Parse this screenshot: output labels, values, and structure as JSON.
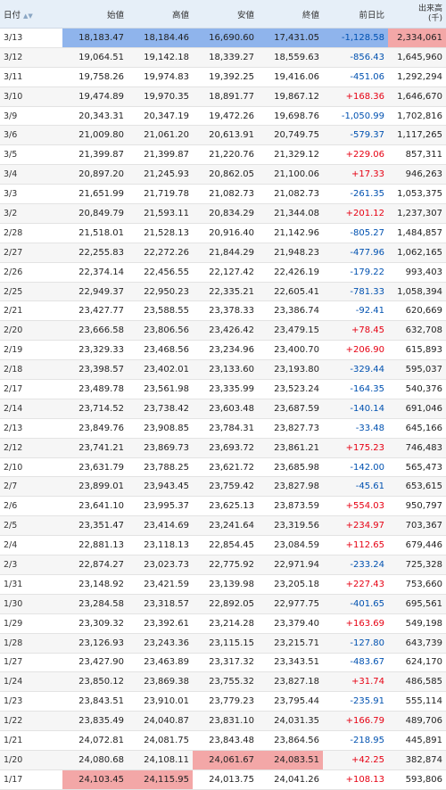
{
  "header": {
    "date_label": "日付",
    "sort_icon": "▲▼",
    "open_label": "始値",
    "high_label": "高値",
    "low_label": "安値",
    "close_label": "終値",
    "change_label": "前日比",
    "volume_label": "出来高",
    "volume_unit": "(千)"
  },
  "colors": {
    "highlight_blue": "#8fb4ec",
    "highlight_red": "#f3a7a7",
    "positive": "#e60012",
    "negative": "#0051b0"
  },
  "rows": [
    {
      "date": "3/13",
      "open": "18,183.47",
      "high": "18,184.46",
      "low": "16,690.60",
      "close": "17,431.05",
      "change": "-1,128.58",
      "volume": "2,334,061",
      "hl": {
        "open": "blue",
        "high": "blue",
        "low": "blue",
        "close": "blue",
        "change": "blue",
        "volume": "red"
      }
    },
    {
      "date": "3/12",
      "open": "19,064.51",
      "high": "19,142.18",
      "low": "18,339.27",
      "close": "18,559.63",
      "change": "-856.43",
      "volume": "1,645,960"
    },
    {
      "date": "3/11",
      "open": "19,758.26",
      "high": "19,974.83",
      "low": "19,392.25",
      "close": "19,416.06",
      "change": "-451.06",
      "volume": "1,292,294"
    },
    {
      "date": "3/10",
      "open": "19,474.89",
      "high": "19,970.35",
      "low": "18,891.77",
      "close": "19,867.12",
      "change": "+168.36",
      "volume": "1,646,670"
    },
    {
      "date": "3/9",
      "open": "20,343.31",
      "high": "20,347.19",
      "low": "19,472.26",
      "close": "19,698.76",
      "change": "-1,050.99",
      "volume": "1,702,816"
    },
    {
      "date": "3/6",
      "open": "21,009.80",
      "high": "21,061.20",
      "low": "20,613.91",
      "close": "20,749.75",
      "change": "-579.37",
      "volume": "1,117,265"
    },
    {
      "date": "3/5",
      "open": "21,399.87",
      "high": "21,399.87",
      "low": "21,220.76",
      "close": "21,329.12",
      "change": "+229.06",
      "volume": "857,311"
    },
    {
      "date": "3/4",
      "open": "20,897.20",
      "high": "21,245.93",
      "low": "20,862.05",
      "close": "21,100.06",
      "change": "+17.33",
      "volume": "946,263"
    },
    {
      "date": "3/3",
      "open": "21,651.99",
      "high": "21,719.78",
      "low": "21,082.73",
      "close": "21,082.73",
      "change": "-261.35",
      "volume": "1,053,375"
    },
    {
      "date": "3/2",
      "open": "20,849.79",
      "high": "21,593.11",
      "low": "20,834.29",
      "close": "21,344.08",
      "change": "+201.12",
      "volume": "1,237,307"
    },
    {
      "date": "2/28",
      "open": "21,518.01",
      "high": "21,528.13",
      "low": "20,916.40",
      "close": "21,142.96",
      "change": "-805.27",
      "volume": "1,484,857"
    },
    {
      "date": "2/27",
      "open": "22,255.83",
      "high": "22,272.26",
      "low": "21,844.29",
      "close": "21,948.23",
      "change": "-477.96",
      "volume": "1,062,165"
    },
    {
      "date": "2/26",
      "open": "22,374.14",
      "high": "22,456.55",
      "low": "22,127.42",
      "close": "22,426.19",
      "change": "-179.22",
      "volume": "993,403"
    },
    {
      "date": "2/25",
      "open": "22,949.37",
      "high": "22,950.23",
      "low": "22,335.21",
      "close": "22,605.41",
      "change": "-781.33",
      "volume": "1,058,394"
    },
    {
      "date": "2/21",
      "open": "23,427.77",
      "high": "23,588.55",
      "low": "23,378.33",
      "close": "23,386.74",
      "change": "-92.41",
      "volume": "620,669"
    },
    {
      "date": "2/20",
      "open": "23,666.58",
      "high": "23,806.56",
      "low": "23,426.42",
      "close": "23,479.15",
      "change": "+78.45",
      "volume": "632,708"
    },
    {
      "date": "2/19",
      "open": "23,329.33",
      "high": "23,468.56",
      "low": "23,234.96",
      "close": "23,400.70",
      "change": "+206.90",
      "volume": "615,893"
    },
    {
      "date": "2/18",
      "open": "23,398.57",
      "high": "23,402.01",
      "low": "23,133.60",
      "close": "23,193.80",
      "change": "-329.44",
      "volume": "595,037"
    },
    {
      "date": "2/17",
      "open": "23,489.78",
      "high": "23,561.98",
      "low": "23,335.99",
      "close": "23,523.24",
      "change": "-164.35",
      "volume": "540,376"
    },
    {
      "date": "2/14",
      "open": "23,714.52",
      "high": "23,738.42",
      "low": "23,603.48",
      "close": "23,687.59",
      "change": "-140.14",
      "volume": "691,046"
    },
    {
      "date": "2/13",
      "open": "23,849.76",
      "high": "23,908.85",
      "low": "23,784.31",
      "close": "23,827.73",
      "change": "-33.48",
      "volume": "645,166"
    },
    {
      "date": "2/12",
      "open": "23,741.21",
      "high": "23,869.73",
      "low": "23,693.72",
      "close": "23,861.21",
      "change": "+175.23",
      "volume": "746,483"
    },
    {
      "date": "2/10",
      "open": "23,631.79",
      "high": "23,788.25",
      "low": "23,621.72",
      "close": "23,685.98",
      "change": "-142.00",
      "volume": "565,473"
    },
    {
      "date": "2/7",
      "open": "23,899.01",
      "high": "23,943.45",
      "low": "23,759.42",
      "close": "23,827.98",
      "change": "-45.61",
      "volume": "653,615"
    },
    {
      "date": "2/6",
      "open": "23,641.10",
      "high": "23,995.37",
      "low": "23,625.13",
      "close": "23,873.59",
      "change": "+554.03",
      "volume": "950,797"
    },
    {
      "date": "2/5",
      "open": "23,351.47",
      "high": "23,414.69",
      "low": "23,241.64",
      "close": "23,319.56",
      "change": "+234.97",
      "volume": "703,367"
    },
    {
      "date": "2/4",
      "open": "22,881.13",
      "high": "23,118.13",
      "low": "22,854.45",
      "close": "23,084.59",
      "change": "+112.65",
      "volume": "679,446"
    },
    {
      "date": "2/3",
      "open": "22,874.27",
      "high": "23,023.73",
      "low": "22,775.92",
      "close": "22,971.94",
      "change": "-233.24",
      "volume": "725,328"
    },
    {
      "date": "1/31",
      "open": "23,148.92",
      "high": "23,421.59",
      "low": "23,139.98",
      "close": "23,205.18",
      "change": "+227.43",
      "volume": "753,660"
    },
    {
      "date": "1/30",
      "open": "23,284.58",
      "high": "23,318.57",
      "low": "22,892.05",
      "close": "22,977.75",
      "change": "-401.65",
      "volume": "695,561"
    },
    {
      "date": "1/29",
      "open": "23,309.32",
      "high": "23,392.61",
      "low": "23,214.28",
      "close": "23,379.40",
      "change": "+163.69",
      "volume": "549,198"
    },
    {
      "date": "1/28",
      "open": "23,126.93",
      "high": "23,243.36",
      "low": "23,115.15",
      "close": "23,215.71",
      "change": "-127.80",
      "volume": "643,739"
    },
    {
      "date": "1/27",
      "open": "23,427.90",
      "high": "23,463.89",
      "low": "23,317.32",
      "close": "23,343.51",
      "change": "-483.67",
      "volume": "624,170"
    },
    {
      "date": "1/24",
      "open": "23,850.12",
      "high": "23,869.38",
      "low": "23,755.32",
      "close": "23,827.18",
      "change": "+31.74",
      "volume": "486,585"
    },
    {
      "date": "1/23",
      "open": "23,843.51",
      "high": "23,910.01",
      "low": "23,779.23",
      "close": "23,795.44",
      "change": "-235.91",
      "volume": "555,114"
    },
    {
      "date": "1/22",
      "open": "23,835.49",
      "high": "24,040.87",
      "low": "23,831.10",
      "close": "24,031.35",
      "change": "+166.79",
      "volume": "489,706"
    },
    {
      "date": "1/21",
      "open": "24,072.81",
      "high": "24,081.75",
      "low": "23,843.48",
      "close": "23,864.56",
      "change": "-218.95",
      "volume": "445,891"
    },
    {
      "date": "1/20",
      "open": "24,080.68",
      "high": "24,108.11",
      "low": "24,061.67",
      "close": "24,083.51",
      "change": "+42.25",
      "volume": "382,874",
      "hl": {
        "low": "red",
        "close": "red"
      }
    },
    {
      "date": "1/17",
      "open": "24,103.45",
      "high": "24,115.95",
      "low": "24,013.75",
      "close": "24,041.26",
      "change": "+108.13",
      "volume": "593,806",
      "hl": {
        "open": "red",
        "high": "red"
      }
    }
  ]
}
